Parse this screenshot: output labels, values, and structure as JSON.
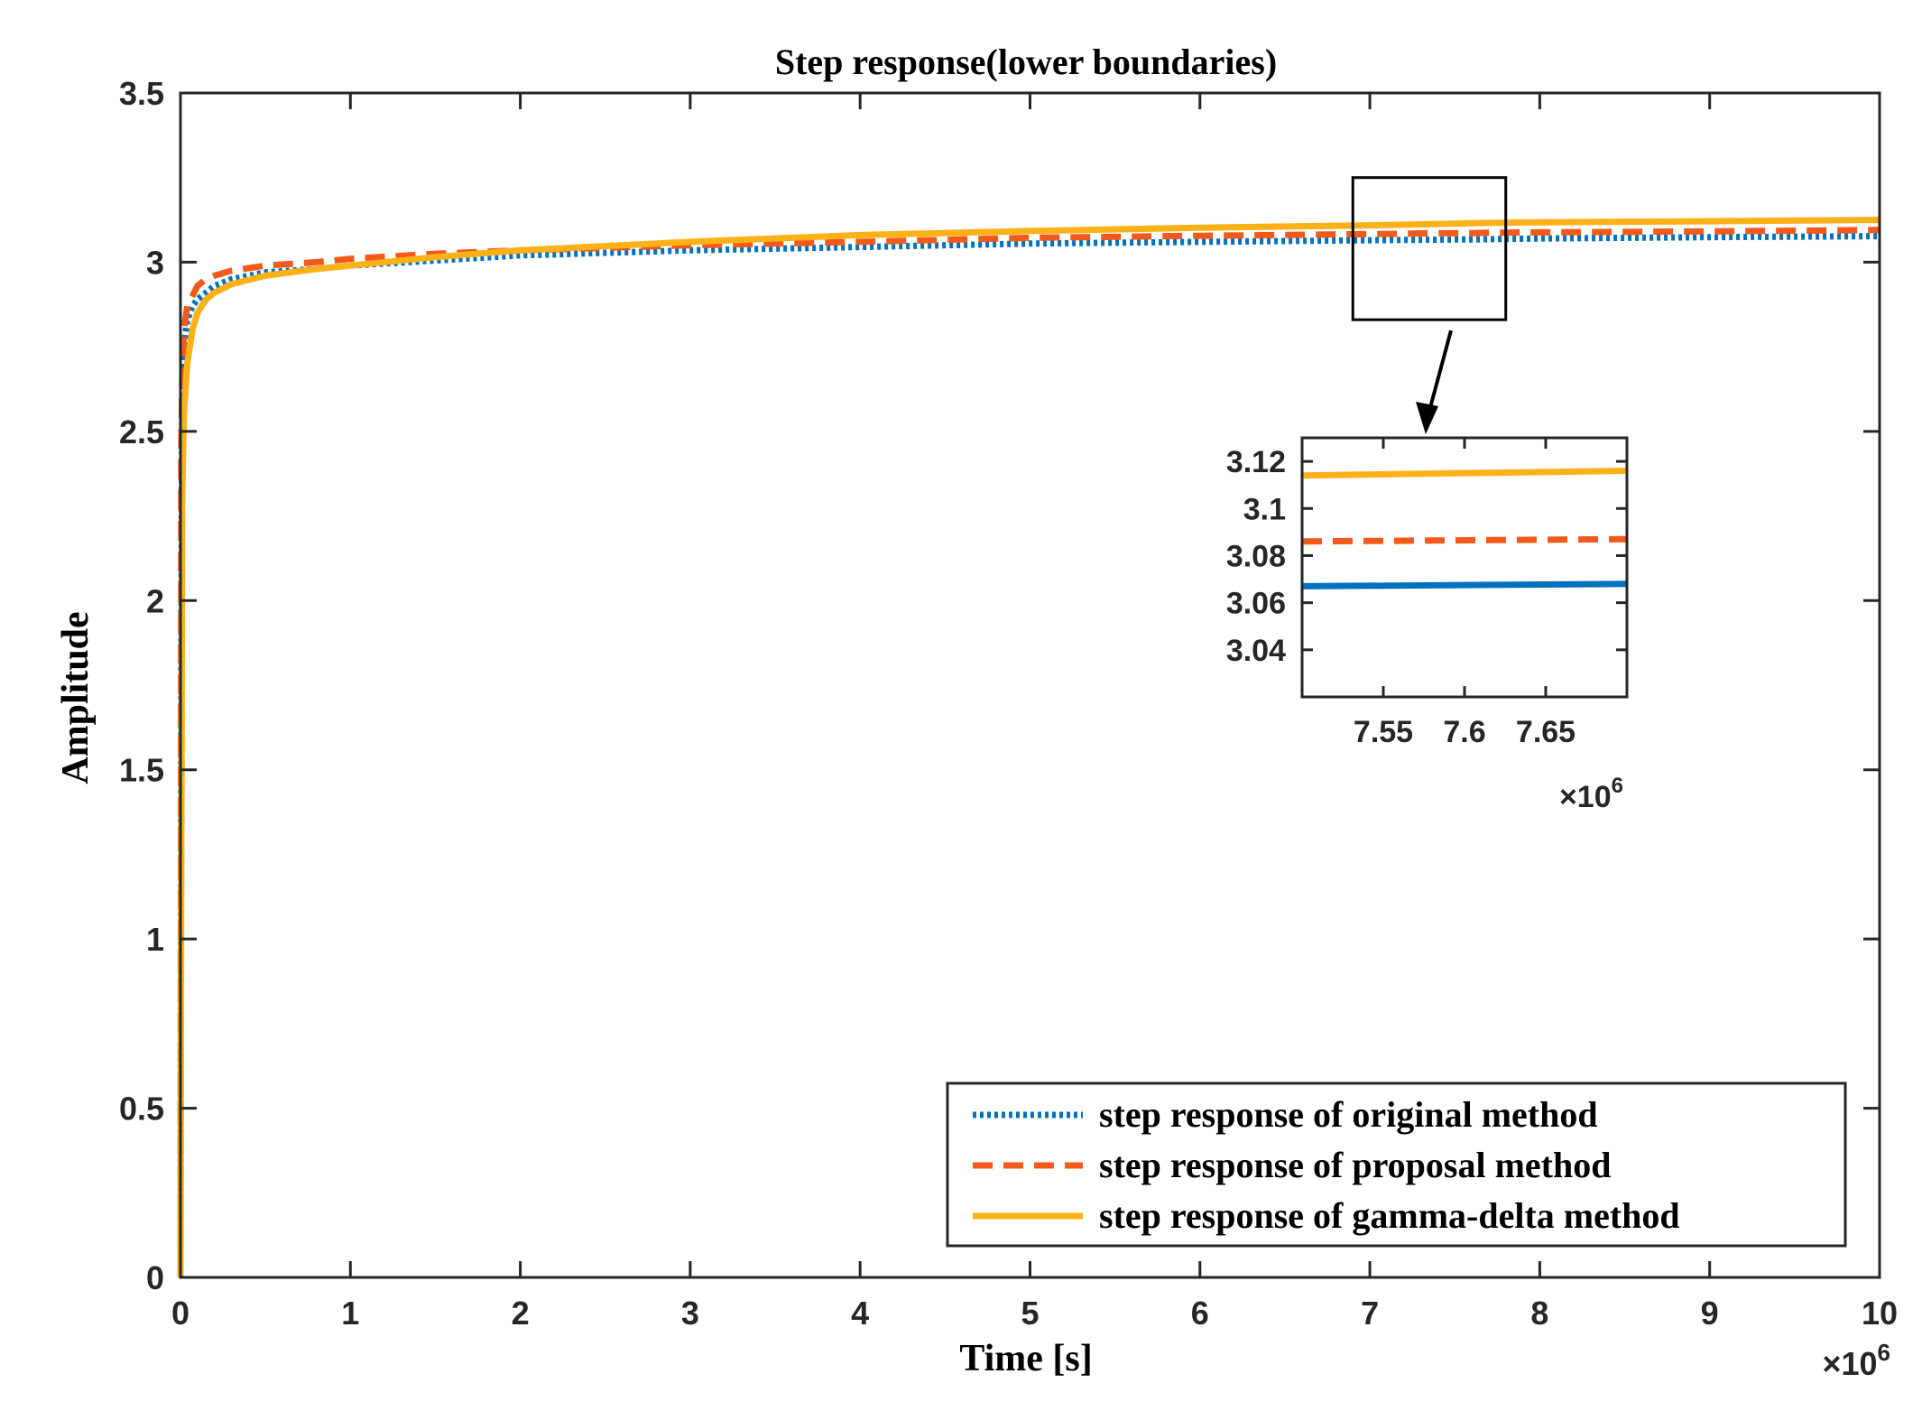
{
  "chart_data": {
    "type": "line",
    "title": "Step response(lower boundaries)",
    "xlabel": "Time [s]",
    "ylabel": "Amplitude",
    "x_multiplier": "×10",
    "x_multiplier_exp": "6",
    "xlim": [
      0,
      10
    ],
    "ylim": [
      0,
      3.5
    ],
    "xticks": [
      0,
      1,
      2,
      3,
      4,
      5,
      6,
      7,
      8,
      9,
      10
    ],
    "xtick_labels": [
      "0",
      "1",
      "2",
      "3",
      "4",
      "5",
      "6",
      "7",
      "8",
      "9",
      "10"
    ],
    "yticks": [
      0,
      0.5,
      1,
      1.5,
      2,
      2.5,
      3,
      3.5
    ],
    "ytick_labels": [
      "0",
      "0.5",
      "1",
      "1.5",
      "2",
      "2.5",
      "3",
      "3.5"
    ],
    "legend_position": "bottom-right",
    "series": [
      {
        "name": "step response of original method",
        "color": "#0072bd",
        "style": "dotted",
        "x": [
          0,
          0.005,
          0.01,
          0.02,
          0.04,
          0.07,
          0.1,
          0.15,
          0.2,
          0.3,
          0.5,
          0.8,
          1.0,
          1.5,
          2,
          3,
          4,
          5,
          6,
          7,
          7.5,
          7.6,
          7.7,
          8,
          9,
          10
        ],
        "y": [
          0,
          1.9,
          2.55,
          2.75,
          2.83,
          2.87,
          2.89,
          2.91,
          2.93,
          2.95,
          2.97,
          2.98,
          2.99,
          3.005,
          3.02,
          3.035,
          3.045,
          3.055,
          3.06,
          3.065,
          3.067,
          3.067,
          3.068,
          3.07,
          3.074,
          3.077
        ]
      },
      {
        "name": "step response of proposal method",
        "color": "#f25a1b",
        "style": "dashed",
        "x": [
          0,
          0.005,
          0.01,
          0.02,
          0.04,
          0.07,
          0.1,
          0.15,
          0.2,
          0.3,
          0.5,
          0.8,
          1.0,
          1.5,
          2,
          3,
          4,
          5,
          6,
          7,
          7.5,
          7.6,
          7.7,
          8,
          9,
          10
        ],
        "y": [
          0,
          2.45,
          2.65,
          2.8,
          2.87,
          2.9,
          2.93,
          2.95,
          2.96,
          2.975,
          2.99,
          3.0,
          3.01,
          3.025,
          3.035,
          3.05,
          3.06,
          3.072,
          3.078,
          3.083,
          3.086,
          3.086,
          3.087,
          3.088,
          3.091,
          3.095
        ]
      },
      {
        "name": "step response of gamma-delta method",
        "color": "#fbb117",
        "style": "solid",
        "x": [
          0,
          0.005,
          0.01,
          0.02,
          0.04,
          0.07,
          0.1,
          0.15,
          0.2,
          0.3,
          0.5,
          0.8,
          1.0,
          1.5,
          2,
          3,
          4,
          5,
          6,
          7,
          7.5,
          7.6,
          7.7,
          8,
          9,
          10
        ],
        "y": [
          0,
          1.2,
          2.3,
          2.55,
          2.7,
          2.8,
          2.85,
          2.89,
          2.91,
          2.935,
          2.96,
          2.98,
          2.99,
          3.015,
          3.035,
          3.06,
          3.08,
          3.092,
          3.102,
          3.109,
          3.114,
          3.115,
          3.116,
          3.118,
          3.121,
          3.125
        ]
      }
    ],
    "inset": {
      "xlim": [
        7.5,
        7.7
      ],
      "ylim": [
        3.02,
        3.13
      ],
      "xticks": [
        7.55,
        7.6,
        7.65
      ],
      "xtick_labels": [
        "7.55",
        "7.6",
        "7.65"
      ],
      "yticks": [
        3.04,
        3.06,
        3.08,
        3.1,
        3.12
      ],
      "ytick_labels": [
        "3.04",
        "3.06",
        "3.08",
        "3.1",
        "3.12"
      ],
      "x_multiplier": "×10",
      "x_multiplier_exp": "6",
      "zoom_region": {
        "xlim": [
          6.9,
          7.8
        ],
        "ylim": [
          2.83,
          3.25
        ]
      },
      "series": [
        {
          "name": "original",
          "color": "#0072bd",
          "x": [
            7.5,
            7.7
          ],
          "y": [
            3.067,
            3.068
          ]
        },
        {
          "name": "proposal",
          "color": "#f25a1b",
          "x": [
            7.5,
            7.7
          ],
          "y": [
            3.086,
            3.087
          ]
        },
        {
          "name": "gamma-delta",
          "color": "#fbb117",
          "x": [
            7.5,
            7.7
          ],
          "y": [
            3.114,
            3.116
          ]
        }
      ]
    }
  }
}
